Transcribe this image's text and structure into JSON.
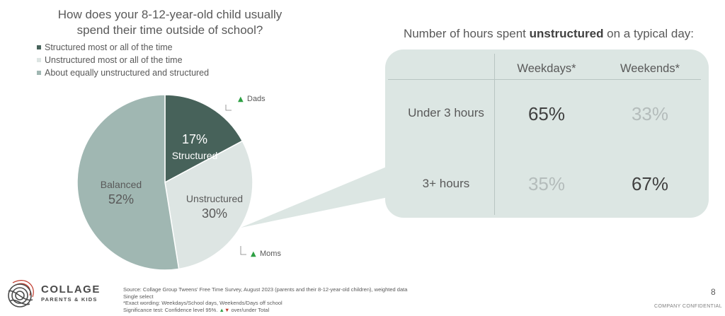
{
  "question": {
    "line1": "How does your 8-12-year-old child usually",
    "line2": "spend their time outside of school?"
  },
  "legend": [
    {
      "label": "Structured most or all of the time",
      "color": "#47625a"
    },
    {
      "label": "Unstructured most or all of the time",
      "color": "#dde5e3"
    },
    {
      "label": "About equally unstructured and structured",
      "color": "#a0b7b2"
    }
  ],
  "chart_data": {
    "type": "pie",
    "slices": [
      {
        "name": "Structured",
        "value": 17,
        "pct_label": "17%",
        "color": "#47625a",
        "text_color": "#ffffff"
      },
      {
        "name": "Unstructured",
        "value": 30,
        "pct_label": "30%",
        "color": "#dde5e3",
        "text_color": "#595959"
      },
      {
        "name": "Balanced",
        "value": 52,
        "pct_label": "52%",
        "color": "#a0b7b2",
        "text_color": "#595959"
      }
    ],
    "annotations": [
      {
        "slice": "Structured",
        "text": "Dads",
        "marker": "▲"
      },
      {
        "slice": "Unstructured",
        "text": "Moms",
        "marker": "▲"
      }
    ]
  },
  "hours_table": {
    "title_pre": "Number of hours spent ",
    "title_bold": "unstructured",
    "title_post": " on a typical day:",
    "columns": [
      "Weekdays*",
      "Weekends*"
    ],
    "rows": [
      {
        "label": "Under 3 hours",
        "values": [
          "65%",
          "33%"
        ],
        "emphasis": [
          "strong",
          "faint"
        ]
      },
      {
        "label": "3+ hours",
        "values": [
          "35%",
          "67%"
        ],
        "emphasis": [
          "faint",
          "strong"
        ]
      }
    ]
  },
  "footer": {
    "logo_main": "COLLAGE",
    "logo_sub": "PARENTS & KIDS",
    "source_lines": [
      "Source: Collage Group Tweens' Free Time Survey, August 2023 (parents and their 8-12-year-old children), weighted data",
      "Single select",
      "*Exact wording: Weekdays/School days, Weekends/Days off school"
    ],
    "sig_prefix": "Significance test: Confidence level 95%.",
    "sig_up": "▲",
    "sig_down": "▼",
    "sig_suffix": " over/under Total",
    "page_number": "8",
    "confidential": "COMPANY CONFIDENTIAL"
  }
}
